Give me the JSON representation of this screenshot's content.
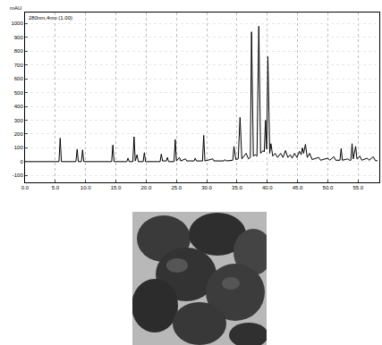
{
  "chart_data": {
    "type": "line",
    "y_label": "mAU",
    "annotation": "280nm,4nm (1.00)",
    "color": "#000000",
    "grid": true,
    "xlim": [
      0,
      58.5
    ],
    "xticks": [
      {
        "value": 0,
        "label": "0.0"
      },
      {
        "value": 5,
        "label": "5.0"
      },
      {
        "value": 10,
        "label": "10.0"
      },
      {
        "value": 15,
        "label": "15.0"
      },
      {
        "value": 20,
        "label": "20.0"
      },
      {
        "value": 25,
        "label": "25.0"
      },
      {
        "value": 30,
        "label": "30.0"
      },
      {
        "value": 35,
        "label": "35.0"
      },
      {
        "value": 40,
        "label": "40.0"
      },
      {
        "value": 45,
        "label": "45.0"
      },
      {
        "value": 50,
        "label": "50.0"
      },
      {
        "value": 55,
        "label": "55.0"
      }
    ],
    "ylim": [
      -150,
      1080
    ],
    "yticks": [
      -100,
      0,
      100,
      200,
      300,
      400,
      500,
      600,
      700,
      800,
      900,
      1000
    ],
    "x": [
      0,
      5.6,
      5.8,
      6.0,
      8.4,
      8.6,
      8.8,
      9.3,
      9.5,
      9.7,
      14.3,
      14.5,
      14.7,
      16.8,
      17.0,
      17.2,
      17.8,
      18.0,
      18.2,
      18.5,
      18.7,
      19.5,
      19.7,
      19.9,
      22.3,
      22.5,
      22.7,
      23.3,
      23.5,
      23.7,
      24.6,
      24.8,
      25.0,
      25.5,
      25.7,
      26.5,
      26.7,
      27.9,
      28.1,
      28.3,
      29.3,
      29.5,
      29.7,
      31.0,
      31.2,
      32.8,
      33.0,
      33.2,
      34.3,
      34.5,
      34.8,
      35.2,
      35.5,
      35.8,
      36.5,
      36.9,
      37.2,
      37.4,
      37.7,
      38.0,
      38.3,
      38.6,
      38.9,
      39.3,
      39.5,
      39.7,
      39.9,
      40.1,
      40.4,
      40.6,
      40.9,
      41.3,
      41.7,
      42.2,
      42.6,
      43.0,
      43.4,
      43.8,
      44.1,
      44.5,
      44.9,
      45.3,
      45.6,
      45.8,
      46.0,
      46.3,
      46.6,
      47.0,
      47.4,
      48.5,
      48.8,
      50.0,
      50.3,
      51.0,
      51.3,
      52.0,
      52.2,
      52.4,
      53.3,
      53.6,
      53.8,
      54.0,
      54.2,
      54.6,
      54.8,
      55.3,
      55.6,
      56.5,
      56.8,
      57.5,
      57.8,
      58.2
    ],
    "values": [
      0,
      0,
      170,
      0,
      0,
      90,
      0,
      0,
      85,
      0,
      0,
      120,
      0,
      0,
      25,
      0,
      0,
      180,
      5,
      50,
      0,
      0,
      65,
      0,
      0,
      55,
      5,
      5,
      30,
      0,
      0,
      160,
      5,
      30,
      5,
      20,
      5,
      5,
      25,
      5,
      5,
      190,
      5,
      20,
      5,
      5,
      15,
      5,
      10,
      110,
      15,
      20,
      320,
      20,
      60,
      20,
      30,
      940,
      40,
      50,
      40,
      980,
      60,
      80,
      70,
      300,
      90,
      760,
      60,
      130,
      40,
      60,
      30,
      60,
      30,
      80,
      30,
      50,
      25,
      60,
      30,
      75,
      50,
      100,
      60,
      125,
      30,
      60,
      15,
      30,
      10,
      25,
      10,
      35,
      10,
      10,
      95,
      10,
      20,
      10,
      10,
      130,
      20,
      110,
      20,
      40,
      10,
      25,
      10,
      35,
      10,
      5
    ]
  }
}
